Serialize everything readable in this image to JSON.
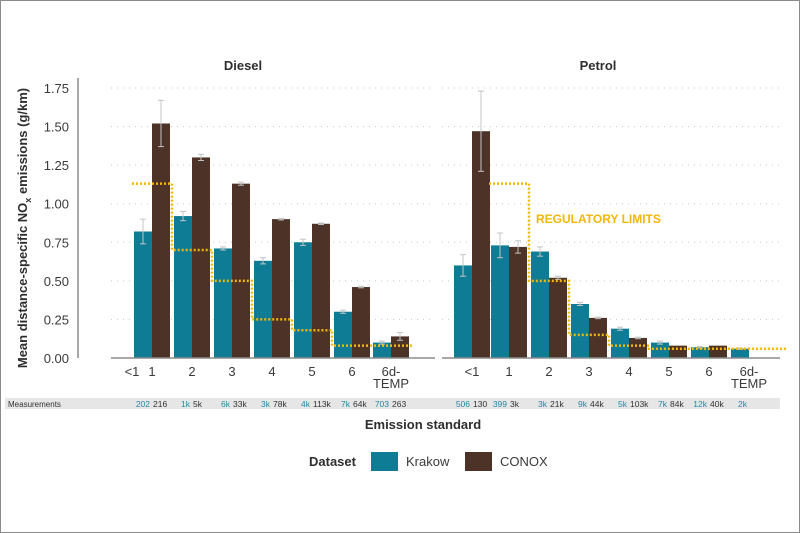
{
  "chart_data": {
    "type": "bar",
    "ylabel_parts": [
      "Mean distance-specific NO",
      "x",
      " emissions (g/km)"
    ],
    "xlabel": "Emission standard",
    "ylim": [
      0,
      1.75
    ],
    "yticks": [
      "0.00",
      "0.25",
      "0.50",
      "0.75",
      "1.00",
      "1.25",
      "1.50",
      "1.75"
    ],
    "ytick_values": [
      0,
      0.25,
      0.5,
      0.75,
      1.0,
      1.25,
      1.5,
      1.75
    ],
    "grid": "horizontal-dotted",
    "categories": [
      "<1",
      "1",
      "2",
      "3",
      "4",
      "5",
      "6",
      "6d-TEMP"
    ],
    "category_lines": [
      [
        "<1"
      ],
      [
        "1"
      ],
      [
        "2"
      ],
      [
        "3"
      ],
      [
        "4"
      ],
      [
        "5"
      ],
      [
        "6"
      ],
      [
        "6d-",
        "TEMP"
      ]
    ],
    "measurements_label": "Measurements",
    "legend": {
      "title": "Dataset",
      "position": "bottom-center",
      "entries": [
        {
          "name": "Krakow",
          "color": "#0e7c95"
        },
        {
          "name": "CONOX",
          "color": "#4d3228"
        }
      ]
    },
    "colors": {
      "krakow": "#0e7c95",
      "conox": "#4d3228",
      "limit": "#f2b705",
      "error": "#c4c4c4",
      "measure_krakow": "#1f8aa6",
      "measure_conox": "#333333"
    },
    "annotation": "REGULATORY LIMITS",
    "panels": [
      {
        "title": "Diesel",
        "series": [
          {
            "name": "Krakow",
            "values": [
              null,
              0.82,
              0.92,
              0.71,
              0.63,
              0.75,
              0.3,
              0.1
            ],
            "err": [
              null,
              0.08,
              0.03,
              0.01,
              0.02,
              0.02,
              0.01,
              0.01
            ]
          },
          {
            "name": "CONOX",
            "values": [
              null,
              1.52,
              1.3,
              1.13,
              0.9,
              0.87,
              0.46,
              0.14
            ],
            "err": [
              null,
              0.15,
              0.02,
              0.01,
              0.005,
              0.005,
              0.005,
              0.025
            ]
          }
        ],
        "limits": [
          null,
          1.13,
          0.7,
          0.5,
          0.25,
          0.18,
          0.08,
          0.08
        ],
        "measurements": [
          {
            "krakow": "",
            "conox": ""
          },
          {
            "krakow": "202",
            "conox": "216"
          },
          {
            "krakow": "1k",
            "conox": "5k"
          },
          {
            "krakow": "6k",
            "conox": "33k"
          },
          {
            "krakow": "3k",
            "conox": "78k"
          },
          {
            "krakow": "4k",
            "conox": "113k"
          },
          {
            "krakow": "7k",
            "conox": "64k"
          },
          {
            "krakow": "703",
            "conox": "263"
          }
        ]
      },
      {
        "title": "Petrol",
        "series": [
          {
            "name": "Krakow",
            "values": [
              0.6,
              0.73,
              0.69,
              0.35,
              0.19,
              0.1,
              0.07,
              0.06
            ],
            "err": [
              0.07,
              0.08,
              0.03,
              0.01,
              0.01,
              0.01,
              0.005,
              0.005
            ]
          },
          {
            "name": "CONOX",
            "values": [
              1.47,
              0.72,
              0.52,
              0.26,
              0.13,
              0.08,
              0.08,
              null
            ],
            "err": [
              0.26,
              0.04,
              0.01,
              0.005,
              0.005,
              0.003,
              0.003,
              null
            ]
          }
        ],
        "limits": [
          null,
          1.13,
          0.5,
          0.15,
          0.08,
          0.06,
          0.06,
          0.06
        ],
        "measurements": [
          {
            "krakow": "506",
            "conox": "130"
          },
          {
            "krakow": "399",
            "conox": "3k"
          },
          {
            "krakow": "3k",
            "conox": "21k"
          },
          {
            "krakow": "9k",
            "conox": "44k"
          },
          {
            "krakow": "5k",
            "conox": "103k"
          },
          {
            "krakow": "7k",
            "conox": "84k"
          },
          {
            "krakow": "12k",
            "conox": "40k"
          },
          {
            "krakow": "2k",
            "conox": ""
          }
        ]
      }
    ]
  }
}
